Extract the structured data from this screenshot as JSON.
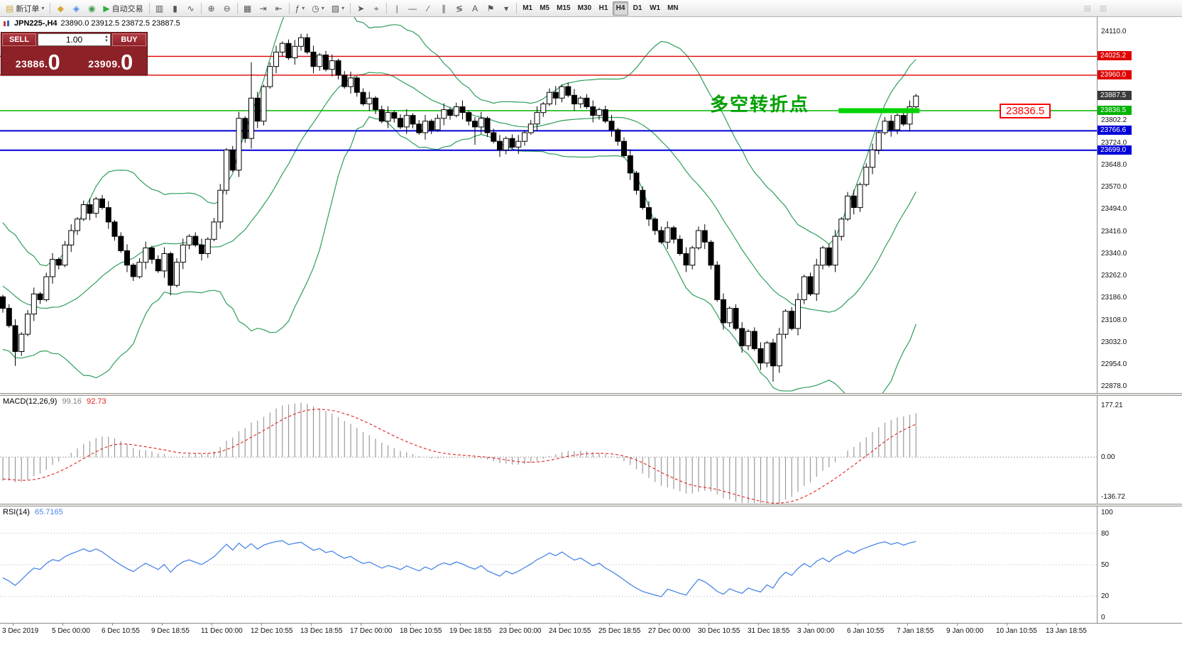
{
  "toolbar": {
    "groups": [
      [
        {
          "name": "new-order-button",
          "glyph": "▤",
          "color": "#caa53d",
          "label": "新订单",
          "dropdown": true
        }
      ],
      [
        {
          "name": "hotkeys-icon-button",
          "glyph": "◆",
          "color": "#d7a43b"
        },
        {
          "name": "market-depth-button",
          "glyph": "◈",
          "color": "#4a86e8"
        },
        {
          "name": "mql-community-button",
          "glyph": "◉",
          "color": "#3f9e4d"
        },
        {
          "name": "auto-trading-button",
          "glyph": "▶",
          "color": "#2fae3f",
          "label": "自动交易"
        }
      ],
      [
        {
          "name": "bar-chart-button",
          "glyph": "▥"
        },
        {
          "name": "candlestick-chart-button",
          "glyph": "▮"
        },
        {
          "name": "line-chart-button",
          "glyph": "∿"
        }
      ],
      [
        {
          "name": "zoom-in-button",
          "glyph": "⊕"
        },
        {
          "name": "zoom-out-button",
          "glyph": "⊖"
        }
      ],
      [
        {
          "name": "tile-windows-button",
          "glyph": "▦"
        },
        {
          "name": "auto-scroll-button",
          "glyph": "⇥"
        },
        {
          "name": "chart-shift-button",
          "glyph": "⇤"
        }
      ],
      [
        {
          "name": "indicators-button",
          "glyph": "ƒ",
          "dropdown": true
        },
        {
          "name": "periods-button",
          "glyph": "◷",
          "dropdown": true
        },
        {
          "name": "templates-button",
          "glyph": "▨",
          "dropdown": true
        }
      ],
      [
        {
          "name": "cursor-button",
          "glyph": "➤"
        },
        {
          "name": "crosshair-button",
          "glyph": "⌖"
        }
      ],
      [
        {
          "name": "vertical-line-button",
          "glyph": "|"
        },
        {
          "name": "horizontal-line-button",
          "glyph": "—"
        },
        {
          "name": "trendline-button",
          "glyph": "∕"
        },
        {
          "name": "channel-button",
          "glyph": "∥"
        },
        {
          "name": "fibonacci-button",
          "glyph": "≶"
        },
        {
          "name": "text-label-button",
          "glyph": "A"
        },
        {
          "name": "arrows-button",
          "glyph": "⚑"
        },
        {
          "name": "shapes-button",
          "glyph": "▾"
        }
      ]
    ],
    "timeframes": [
      "M1",
      "M5",
      "M15",
      "M30",
      "H1",
      "H4",
      "D1",
      "W1",
      "MN"
    ],
    "active_timeframe": "H4",
    "right_icons": [
      {
        "name": "window-layout-icon",
        "glyph": "▤"
      },
      {
        "name": "help-icon",
        "glyph": "▥"
      }
    ]
  },
  "chart": {
    "title_symbol": "JPN225-,H4",
    "ohlc": "23890.0 23912.5 23872.5 23887.5"
  },
  "trade_panel": {
    "sell_label": "SELL",
    "buy_label": "BUY",
    "volume": "1.00",
    "sell_price_small": "23886.",
    "sell_price_big": "0",
    "buy_price_small": "23909.",
    "buy_price_big": "0"
  },
  "annotation": {
    "text": "多空转折点",
    "price_label": "23836.5"
  },
  "indicators": {
    "macd": {
      "label": "MACD(12,26,9)",
      "value_main": "99.16",
      "value_signal": "92.73"
    },
    "rsi": {
      "label": "RSI(14)",
      "value": "65.7165"
    }
  },
  "axis": {
    "main_labels": [
      "24110.0",
      "23802.2",
      "23724.0",
      "23648.0",
      "23570.0",
      "23494.0",
      "23416.0",
      "23340.0",
      "23262.0",
      "23186.0",
      "23108.0",
      "23032.0",
      "22954.0",
      "22878.0"
    ],
    "tags": [
      {
        "text": "24025.2",
        "color": "red"
      },
      {
        "text": "23960.0",
        "color": "red"
      },
      {
        "text": "23887.5",
        "color": "dark"
      },
      {
        "text": "23836.5",
        "color": "green"
      },
      {
        "text": "23766.6",
        "color": "blue"
      },
      {
        "text": "23699.0",
        "color": "blue"
      }
    ],
    "macd_labels": [
      "177.21",
      "0.00",
      "-136.72"
    ],
    "rsi_labels": [
      "100",
      "80",
      "50",
      "20",
      "0"
    ]
  },
  "levels": [
    {
      "price": 24025.2,
      "color": "red"
    },
    {
      "price": 23960.0,
      "color": "red"
    },
    {
      "price": 23836.5,
      "color": "green"
    },
    {
      "price": 23766.6,
      "color": "blue"
    },
    {
      "price": 23699.0,
      "color": "blue"
    }
  ],
  "colors": {
    "red": "#e00000",
    "green": "#00b300",
    "blue": "#0000d8",
    "dark": "#3a3a3a",
    "highlight": "#00d300",
    "bollinger": "#2e9e5b",
    "candle_up": "#ffffff",
    "candle_down": "#000000",
    "candle_outline": "#000000",
    "macd_hist": "#9a9a9a",
    "macd_signal": "#e02020",
    "rsi_line": "#4a86e8",
    "annotation": "#00a000"
  },
  "chart_data": {
    "type": "candlestick",
    "symbol": "JPN225-",
    "timeframe": "H4",
    "current_price": 23887.5,
    "ylim": [
      22878,
      24110
    ],
    "first_open": 23190,
    "closes": [
      23150,
      23090,
      23000,
      23060,
      23130,
      23200,
      23180,
      23260,
      23320,
      23300,
      23370,
      23420,
      23460,
      23510,
      23480,
      23530,
      23500,
      23450,
      23400,
      23350,
      23300,
      23260,
      23310,
      23360,
      23320,
      23280,
      23340,
      23230,
      23310,
      23370,
      23400,
      23370,
      23340,
      23390,
      23450,
      23560,
      23700,
      23630,
      23810,
      23740,
      23880,
      23800,
      23920,
      23990,
      24040,
      24070,
      24020,
      24060,
      24090,
      24040,
      23990,
      24030,
      23980,
      24010,
      23960,
      23920,
      23950,
      23900,
      23860,
      23880,
      23840,
      23800,
      23830,
      23810,
      23780,
      23820,
      23790,
      23760,
      23800,
      23770,
      23810,
      23840,
      23820,
      23850,
      23830,
      23800,
      23780,
      23810,
      23760,
      23730,
      23700,
      23740,
      23710,
      23730,
      23760,
      23790,
      23830,
      23860,
      23900,
      23880,
      23920,
      23890,
      23860,
      23880,
      23850,
      23820,
      23840,
      23800,
      23770,
      23730,
      23680,
      23620,
      23560,
      23500,
      23460,
      23420,
      23380,
      23430,
      23390,
      23340,
      23300,
      23360,
      23420,
      23380,
      23300,
      23180,
      23100,
      23150,
      23080,
      23020,
      23070,
      23010,
      22960,
      23030,
      22950,
      23060,
      23140,
      23080,
      23180,
      23260,
      23200,
      23300,
      23360,
      23300,
      23400,
      23460,
      23540,
      23500,
      23580,
      23640,
      23700,
      23760,
      23800,
      23770,
      23820,
      23790,
      23850,
      23887.5
    ],
    "warmup_closes": [
      23450,
      23420,
      23380,
      23400,
      23350,
      23300,
      23340,
      23280,
      23240,
      23290,
      23220,
      23180,
      23230,
      23150,
      23100,
      23160,
      23080,
      23120,
      23060,
      23100
    ],
    "wick_overrides": {
      "2": {
        "low": 22950
      },
      "27": {
        "low": 23195
      },
      "40": {
        "high": 24005,
        "low": 23705
      },
      "48": {
        "high": 24103
      },
      "76": {
        "low": 23718
      },
      "124": {
        "low": 22895
      }
    },
    "highlight": {
      "price": 23836.5,
      "from_bar": 135,
      "to_bar": 147
    },
    "bollinger_period": 20,
    "bollinger_deviation": 2,
    "macd_axis_range": [
      -160,
      210
    ],
    "x_labels": [
      "3 Dec 2019",
      "5 Dec 00:00",
      "6 Dec 10:55",
      "9 Dec 18:55",
      "11 Dec 00:00",
      "12 Dec 10:55",
      "13 Dec 18:55",
      "17 Dec 00:00",
      "18 Dec 10:55",
      "19 Dec 18:55",
      "23 Dec 00:00",
      "24 Dec 10:55",
      "25 Dec 18:55",
      "27 Dec 00:00",
      "30 Dec 10:55",
      "31 Dec 18:55",
      "3 Jan 00:00",
      "6 Jan 10:55",
      "7 Jan 18:55",
      "9 Jan 00:00",
      "10 Jan 10:55",
      "13 Jan 18:55"
    ]
  }
}
